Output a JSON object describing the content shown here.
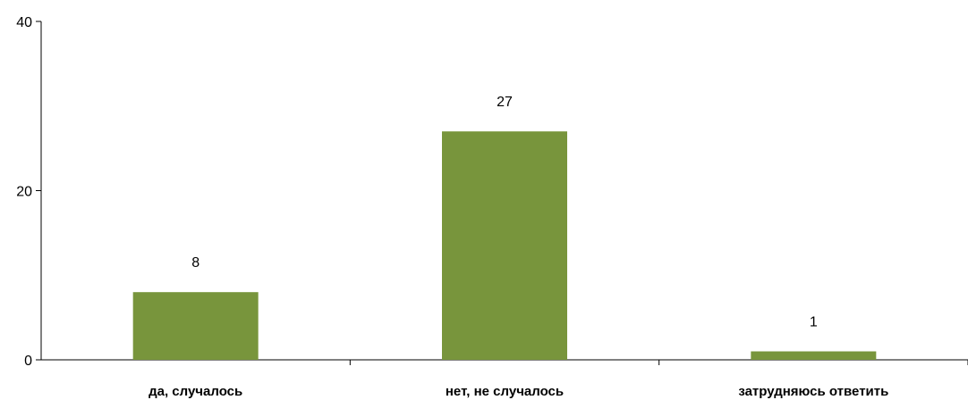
{
  "chart_data": {
    "type": "bar",
    "title": "",
    "xlabel": "",
    "ylabel": "",
    "categories": [
      "да, случалось",
      "нет, не случалось",
      "затрудняюсь ответить"
    ],
    "values": [
      8,
      27,
      1
    ],
    "data_labels": [
      "8",
      "27",
      "1"
    ],
    "ylim": [
      0,
      40
    ],
    "yticks": [
      0,
      20,
      40
    ],
    "ytick_labels": [
      "0",
      "20",
      "40"
    ],
    "grid": false,
    "legend": "none",
    "bar_color": "#78953c"
  }
}
